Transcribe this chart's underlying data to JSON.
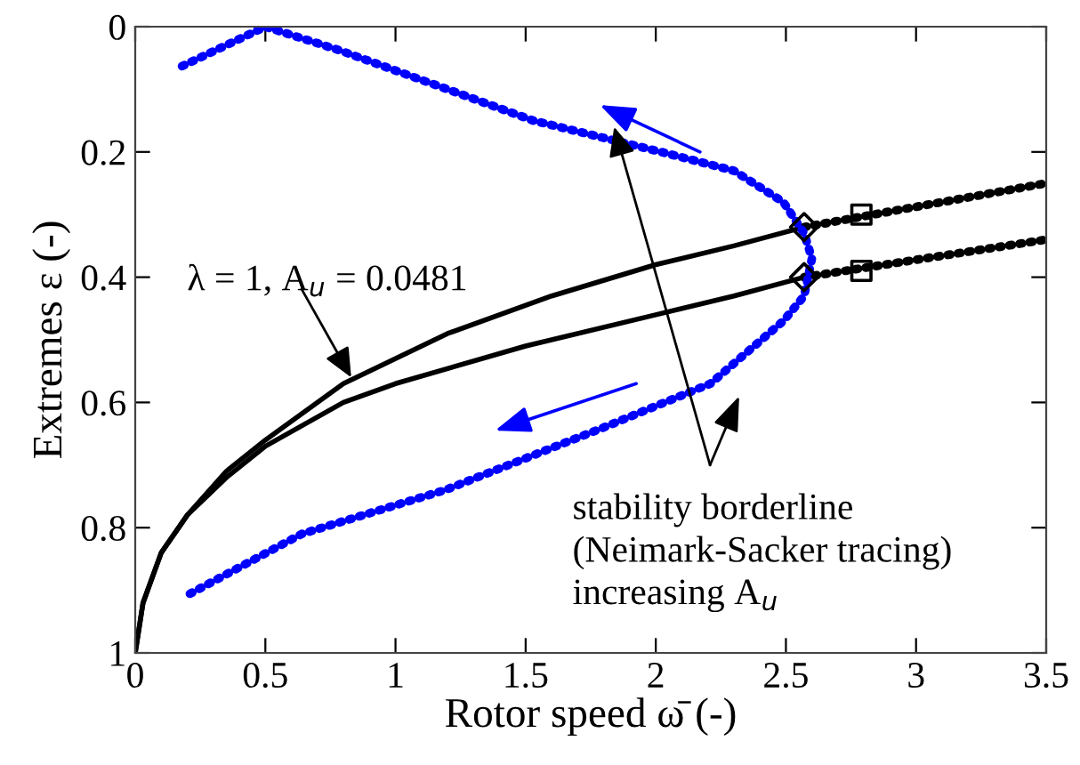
{
  "chart_data": {
    "type": "line",
    "xlabel": "Rotor speed ω̄ (-)",
    "ylabel": "Extremes ε (-)",
    "xlim": [
      0,
      3.5
    ],
    "ylim": [
      1,
      0
    ],
    "xticks": [
      0,
      0.5,
      1,
      1.5,
      2,
      2.5,
      3,
      3.5
    ],
    "yticks": [
      0,
      0.2,
      0.4,
      0.6,
      0.8,
      1
    ],
    "grid": false,
    "legend": false,
    "series": [
      {
        "color": "#000000",
        "line_style": "solid",
        "marker": "none",
        "x": [
          0.0,
          0.03,
          0.1,
          0.2,
          0.35,
          0.5,
          0.8,
          1.2,
          1.6,
          2.0,
          2.3,
          2.57
        ],
        "values": [
          1.0,
          0.92,
          0.84,
          0.78,
          0.71,
          0.66,
          0.57,
          0.49,
          0.43,
          0.38,
          0.35,
          0.32
        ]
      },
      {
        "color": "#000000",
        "line_style": "solid",
        "marker": "none",
        "x": [
          0.0,
          0.03,
          0.1,
          0.2,
          0.35,
          0.5,
          0.8,
          1.0,
          1.5,
          2.0,
          2.3,
          2.57
        ],
        "values": [
          1.0,
          0.92,
          0.84,
          0.78,
          0.72,
          0.67,
          0.6,
          0.57,
          0.51,
          0.46,
          0.43,
          0.4
        ]
      },
      {
        "type": "line",
        "color": "#000000",
        "line_style": "dotted",
        "marker": "none",
        "x": [
          2.57,
          3.5
        ],
        "values": [
          0.32,
          0.25
        ]
      },
      {
        "type": "line",
        "color": "#000000",
        "line_style": "dotted",
        "marker": "none",
        "x": [
          2.57,
          3.5
        ],
        "values": [
          0.4,
          0.34
        ]
      },
      {
        "type": "line",
        "color": "#0000ff",
        "line_style": "dotted",
        "marker": "none",
        "x": [
          0.18,
          0.5,
          0.78,
          1.2,
          1.53,
          2.02,
          2.3,
          2.49,
          2.57,
          2.6,
          2.57,
          2.49,
          2.21,
          1.8,
          1.19,
          0.64,
          0.19
        ],
        "values": [
          0.063,
          0.0,
          0.037,
          0.1,
          0.15,
          0.2,
          0.23,
          0.28,
          0.33,
          0.37,
          0.43,
          0.47,
          0.57,
          0.64,
          0.74,
          0.81,
          0.91
        ]
      },
      {
        "type": "scatter",
        "color": "#000000",
        "marker": "diamond",
        "x": [
          2.57,
          2.57
        ],
        "values": [
          0.32,
          0.4
        ]
      },
      {
        "type": "scatter",
        "color": "#000000",
        "marker": "square",
        "x": [
          2.79,
          2.79
        ],
        "values": [
          0.3,
          0.39
        ]
      }
    ],
    "annotations": [
      {
        "text": "λ = 1, A$_{u}$ = 0.0481",
        "x": 0.83,
        "y": 0.56
      },
      {
        "text": "stability borderline\n(Neimark-Sacker tracing)\nincreasing A$_{u}$",
        "x": 1.84,
        "y": 0.16
      }
    ]
  }
}
